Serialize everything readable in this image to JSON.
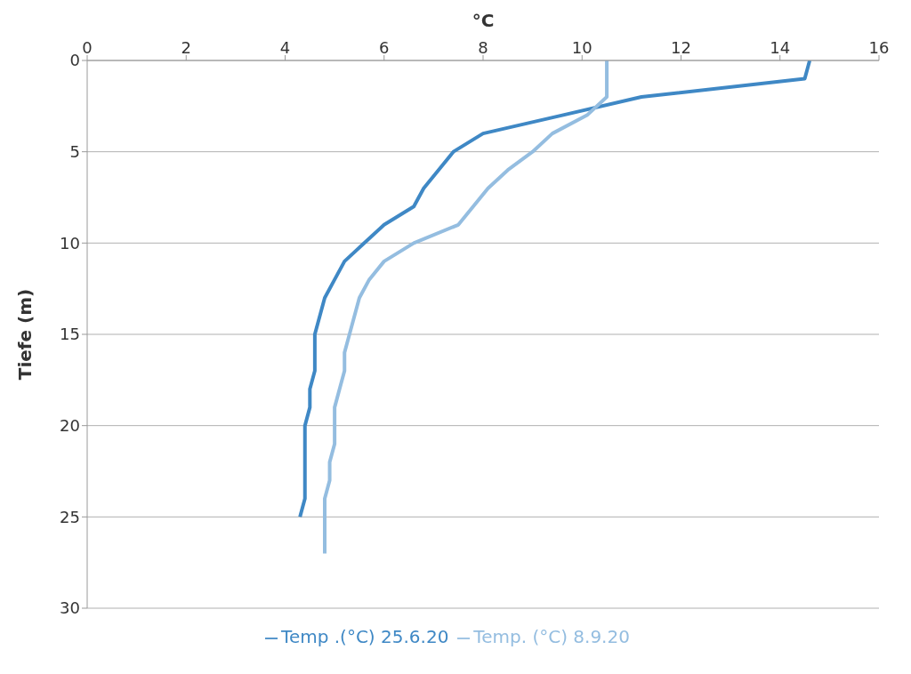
{
  "chart_data": {
    "type": "line",
    "xlabel": "°C",
    "ylabel": "Tiefe (m)",
    "xlim": [
      0,
      16
    ],
    "xticks": [
      0,
      2,
      4,
      6,
      8,
      10,
      12,
      14,
      16
    ],
    "ylim": [
      30,
      0
    ],
    "yticks": [
      0,
      5,
      10,
      15,
      20,
      25,
      30
    ],
    "grid": "y",
    "legend": "bottom",
    "marker": "none",
    "line_style": "solid",
    "series": [
      {
        "name": "Temp .(°C) 25.6.20",
        "color": "#3f88c5",
        "x": [
          14.6,
          14.5,
          11.2,
          9.6,
          8.0,
          7.4,
          7.1,
          6.8,
          6.6,
          6.0,
          5.6,
          5.2,
          5.0,
          4.8,
          4.7,
          4.6,
          4.6,
          4.6,
          4.5,
          4.5,
          4.4,
          4.4,
          4.4,
          4.4,
          4.4,
          4.3
        ],
        "values": [
          0,
          1,
          2,
          3,
          4,
          5,
          6,
          7,
          8,
          9,
          10,
          11,
          12,
          13,
          14,
          15,
          16,
          17,
          18,
          19,
          20,
          21,
          22,
          23,
          24,
          25
        ]
      },
      {
        "name": "Temp. (°C) 8.9.20",
        "color": "#94bde0",
        "x": [
          10.5,
          10.5,
          10.5,
          10.1,
          9.4,
          9.0,
          8.5,
          8.1,
          7.8,
          7.5,
          6.6,
          6.0,
          5.7,
          5.5,
          5.4,
          5.3,
          5.2,
          5.2,
          5.1,
          5.0,
          5.0,
          5.0,
          4.9,
          4.9,
          4.8,
          4.8,
          4.8,
          4.8
        ],
        "values": [
          0,
          1,
          2,
          3,
          4,
          5,
          6,
          7,
          8,
          9,
          10,
          11,
          12,
          13,
          14,
          15,
          16,
          17,
          18,
          19,
          20,
          21,
          22,
          23,
          24,
          25,
          26,
          27
        ]
      }
    ]
  }
}
